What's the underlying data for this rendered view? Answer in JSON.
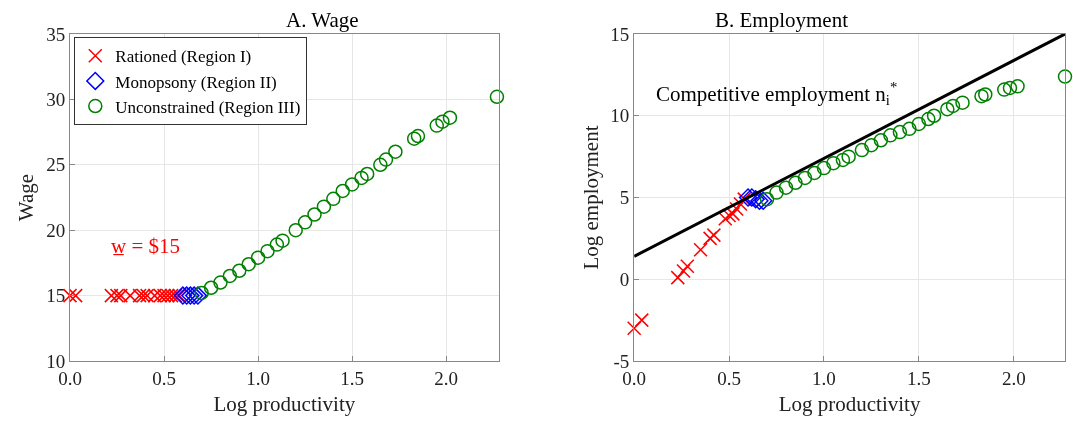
{
  "chart_data": [
    {
      "type": "scatter",
      "title": "A. Wage",
      "xlabel": "Log productivity",
      "ylabel": "Wage",
      "xlim": [
        0,
        2.28
      ],
      "xticks": [
        {
          "value": 0,
          "label": "0.0"
        },
        {
          "value": 0.5,
          "label": "0.5"
        },
        {
          "value": 1,
          "label": "1.0"
        },
        {
          "value": 1.5,
          "label": "1.5"
        },
        {
          "value": 2,
          "label": "2.0"
        }
      ],
      "ylim": [
        10,
        35
      ],
      "yticks": [
        10,
        15,
        20,
        25,
        30,
        35
      ],
      "grid": true,
      "legend": "top left",
      "annotations": [
        "w̲ = $15"
      ],
      "series": [
        {
          "name": "Rationed (Region I)",
          "color": "#ff0000",
          "marker": "cross",
          "x": [
            0.0,
            0.03,
            0.22,
            0.25,
            0.27,
            0.32,
            0.37,
            0.39,
            0.41,
            0.45,
            0.48,
            0.5,
            0.52,
            0.54,
            0.56,
            0.58
          ],
          "values": [
            15,
            15,
            15,
            15,
            15,
            15,
            15,
            15,
            15,
            15,
            15,
            15,
            15,
            15,
            15,
            15
          ]
        },
        {
          "name": "Monopsony (Region II)",
          "color": "#0000ff",
          "marker": "diamond",
          "x": [
            0.6,
            0.62,
            0.64,
            0.66,
            0.68
          ],
          "values": [
            15,
            15,
            15,
            15,
            15
          ]
        },
        {
          "name": "Unconstrained (Region III)",
          "color": "#008000",
          "marker": "circle",
          "x": [
            0.7,
            0.75,
            0.8,
            0.85,
            0.9,
            0.95,
            1.0,
            1.05,
            1.1,
            1.13,
            1.2,
            1.25,
            1.3,
            1.35,
            1.4,
            1.45,
            1.5,
            1.55,
            1.58,
            1.65,
            1.68,
            1.73,
            1.83,
            1.85,
            1.95,
            1.98,
            2.02,
            2.27
          ],
          "values": [
            15.2,
            15.6,
            16.0,
            16.5,
            16.9,
            17.4,
            17.9,
            18.4,
            18.9,
            19.2,
            20.0,
            20.6,
            21.2,
            21.8,
            22.4,
            23.0,
            23.5,
            24.0,
            24.3,
            25.0,
            25.4,
            26.0,
            27.0,
            27.2,
            28.0,
            28.3,
            28.6,
            30.2
          ]
        }
      ]
    },
    {
      "type": "scatter",
      "title": "B. Employment",
      "xlabel": "Log productivity",
      "ylabel": "Log employment",
      "xlim": [
        0,
        2.27
      ],
      "xticks": [
        {
          "value": 0,
          "label": "0.0"
        },
        {
          "value": 0.5,
          "label": "0.5"
        },
        {
          "value": 1,
          "label": "1.0"
        },
        {
          "value": 1.5,
          "label": "1.5"
        },
        {
          "value": 2,
          "label": "2.0"
        }
      ],
      "ylim": [
        -5,
        15
      ],
      "yticks": [
        -5,
        0,
        5,
        10,
        15
      ],
      "grid": true,
      "annotations": [
        "Competitive employment n$_{i}$$^{*}$"
      ],
      "series": [
        {
          "color": "#ff0000",
          "marker": "cross",
          "x": [
            0.0,
            0.04,
            0.23,
            0.26,
            0.28,
            0.35,
            0.4,
            0.42,
            0.48,
            0.5,
            0.52,
            0.54,
            0.56,
            0.58
          ],
          "values": [
            -3.0,
            -2.5,
            0.1,
            0.5,
            0.8,
            1.8,
            2.5,
            2.7,
            3.7,
            3.9,
            4.0,
            4.3,
            4.6,
            4.9
          ]
        },
        {
          "color": "#0000ff",
          "marker": "diamond",
          "x": [
            0.6,
            0.62,
            0.64,
            0.66,
            0.68
          ],
          "values": [
            5.0,
            5.0,
            4.9,
            4.8,
            4.8
          ]
        },
        {
          "color": "#008000",
          "marker": "circle",
          "x": [
            0.7,
            0.75,
            0.8,
            0.85,
            0.9,
            0.95,
            1.0,
            1.05,
            1.1,
            1.13,
            1.2,
            1.25,
            1.3,
            1.35,
            1.4,
            1.45,
            1.5,
            1.55,
            1.58,
            1.65,
            1.68,
            1.73,
            1.83,
            1.85,
            1.95,
            1.98,
            2.02,
            2.27
          ],
          "values": [
            4.9,
            5.3,
            5.6,
            5.9,
            6.2,
            6.5,
            6.8,
            7.1,
            7.3,
            7.5,
            7.9,
            8.2,
            8.5,
            8.8,
            9.0,
            9.2,
            9.5,
            9.8,
            10.0,
            10.4,
            10.6,
            10.8,
            11.2,
            11.3,
            11.6,
            11.7,
            11.8,
            12.4
          ]
        },
        {
          "type": "line",
          "color": "#000000",
          "marker": "none",
          "line_style": "solid",
          "x": [
            0,
            2.27
          ],
          "values": [
            1.4,
            15
          ]
        }
      ]
    }
  ]
}
